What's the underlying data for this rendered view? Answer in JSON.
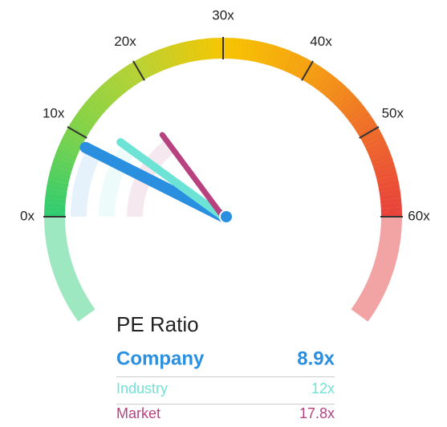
{
  "chart_data": {
    "type": "gauge",
    "title": "PE Ratio",
    "xlim": [
      0,
      60
    ],
    "xticks": [
      {
        "value": 0,
        "label": "0x"
      },
      {
        "value": 10,
        "label": "10x"
      },
      {
        "value": 20,
        "label": "20x"
      },
      {
        "value": 30,
        "label": "30x"
      },
      {
        "value": 40,
        "label": "40x"
      },
      {
        "value": 50,
        "label": "50x"
      },
      {
        "value": 60,
        "label": "60x"
      }
    ],
    "band_colors": [
      "#2ecc71",
      "#7fd24a",
      "#b8d234",
      "#f6c500",
      "#f5a012",
      "#ee6b2b",
      "#e8413b"
    ],
    "series": [
      {
        "name": "Company",
        "color": "#2b8fe0",
        "values": [
          8.9
        ],
        "value_labels": [
          "8.9x"
        ]
      },
      {
        "name": "Industry",
        "color": "#6de3d6",
        "values": [
          12
        ],
        "value_labels": [
          "12x"
        ]
      },
      {
        "name": "Market",
        "color": "#b8427f",
        "values": [
          17.8
        ],
        "value_labels": [
          "17.8x"
        ]
      }
    ]
  }
}
